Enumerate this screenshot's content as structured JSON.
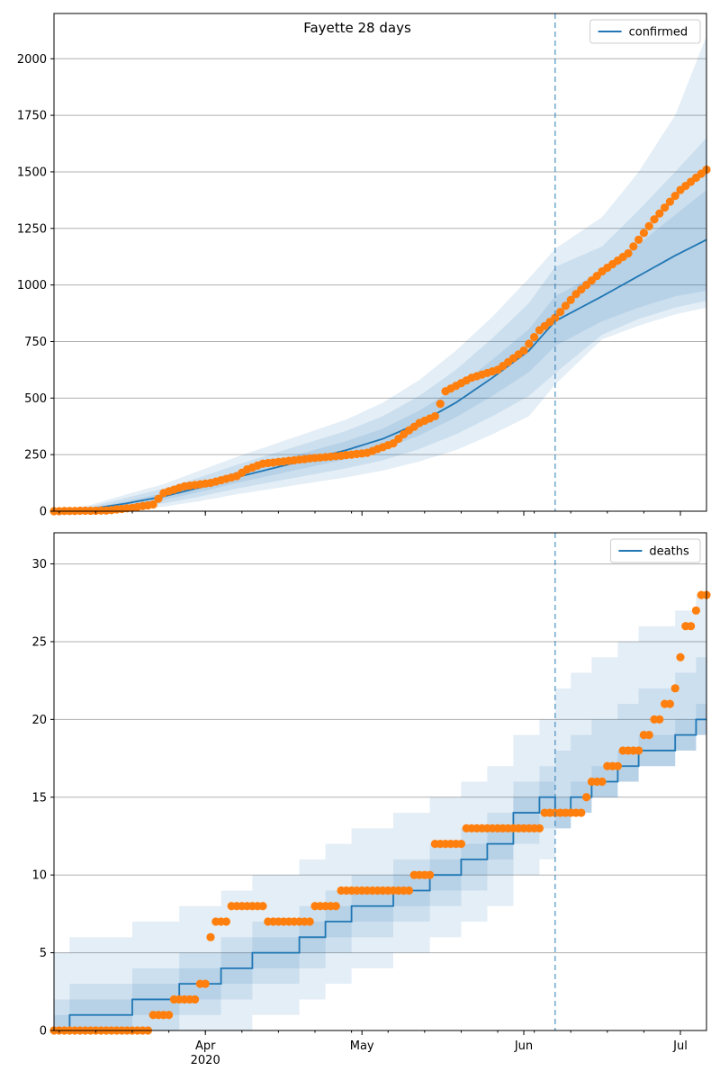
{
  "colors": {
    "model": "#1f77b4",
    "observed": "#ff7f0e",
    "band": "#1f77b4",
    "grid": "#b0b0b0",
    "forecast_line": "#1f77b4"
  },
  "chart_data": [
    {
      "type": "line",
      "title": "Fayette 28 days",
      "xlabel": "",
      "ylabel": "",
      "x_range": [
        "2020-03-03",
        "2020-07-06"
      ],
      "xlim": [
        0,
        125
      ],
      "ylim": [
        0,
        2200
      ],
      "yticks": [
        0,
        250,
        500,
        750,
        1000,
        1250,
        1500,
        1750,
        2000
      ],
      "grid": "horizontal",
      "legend_position": "top-right",
      "legend": [
        "confirmed"
      ],
      "forecast_start_day": 96,
      "model_series": {
        "name": "confirmed",
        "knots_day": [
          0,
          7,
          14,
          21,
          28,
          35,
          42,
          49,
          56,
          63,
          70,
          77,
          84,
          91,
          96,
          105,
          112,
          119,
          125
        ],
        "median": [
          0,
          10,
          35,
          65,
          105,
          150,
          190,
          230,
          270,
          320,
          390,
          480,
          590,
          710,
          840,
          950,
          1040,
          1130,
          1200
        ],
        "band_50": [
          [
            0,
            0
          ],
          [
            6,
            14
          ],
          [
            25,
            45
          ],
          [
            50,
            80
          ],
          [
            85,
            125
          ],
          [
            125,
            175
          ],
          [
            160,
            220
          ],
          [
            195,
            265
          ],
          [
            230,
            310
          ],
          [
            275,
            365
          ],
          [
            335,
            445
          ],
          [
            415,
            545
          ],
          [
            510,
            670
          ],
          [
            615,
            805
          ],
          [
            730,
            950
          ],
          [
            840,
            1060
          ],
          [
            900,
            1180
          ],
          [
            950,
            1310
          ],
          [
            975,
            1420
          ]
        ],
        "band_80": [
          [
            0,
            0
          ],
          [
            3,
            20
          ],
          [
            15,
            60
          ],
          [
            35,
            100
          ],
          [
            65,
            150
          ],
          [
            100,
            205
          ],
          [
            130,
            255
          ],
          [
            160,
            305
          ],
          [
            190,
            355
          ],
          [
            225,
            420
          ],
          [
            275,
            510
          ],
          [
            340,
            625
          ],
          [
            420,
            765
          ],
          [
            510,
            920
          ],
          [
            610,
            1080
          ],
          [
            780,
            1170
          ],
          [
            850,
            1330
          ],
          [
            900,
            1500
          ],
          [
            930,
            1650
          ]
        ],
        "band_95": [
          [
            0,
            0
          ],
          [
            0,
            28
          ],
          [
            5,
            75
          ],
          [
            20,
            120
          ],
          [
            45,
            180
          ],
          [
            75,
            240
          ],
          [
            100,
            295
          ],
          [
            125,
            350
          ],
          [
            150,
            405
          ],
          [
            180,
            480
          ],
          [
            220,
            580
          ],
          [
            270,
            710
          ],
          [
            340,
            860
          ],
          [
            420,
            1030
          ],
          [
            560,
            1160
          ],
          [
            760,
            1300
          ],
          [
            820,
            1500
          ],
          [
            870,
            1750
          ],
          [
            900,
            2100
          ]
        ]
      },
      "observed": {
        "knots_day": [
          0,
          10,
          15,
          19,
          21,
          25,
          30,
          35,
          37,
          40,
          44,
          50,
          55,
          60,
          65,
          67,
          70,
          73,
          75,
          80,
          85,
          90,
          93,
          96,
          100,
          105,
          110,
          115,
          120,
          125
        ],
        "values": [
          0,
          3,
          15,
          30,
          80,
          110,
          125,
          155,
          185,
          210,
          220,
          235,
          245,
          258,
          300,
          340,
          390,
          420,
          530,
          590,
          625,
          710,
          800,
          855,
          960,
          1060,
          1140,
          1290,
          1420,
          1510
        ]
      }
    },
    {
      "type": "line",
      "title": "",
      "xlabel": "",
      "ylabel": "",
      "xlim": [
        0,
        125
      ],
      "ylim": [
        0,
        32
      ],
      "yticks": [
        0,
        5,
        10,
        15,
        20,
        25,
        30
      ],
      "xticks": [
        {
          "day": 29,
          "label": "Apr",
          "sublabel": "2020"
        },
        {
          "day": 59,
          "label": "May",
          "sublabel": ""
        },
        {
          "day": 90,
          "label": "Jun",
          "sublabel": ""
        },
        {
          "day": 120,
          "label": "Jul",
          "sublabel": ""
        }
      ],
      "grid": "horizontal",
      "legend_position": "top-right",
      "legend": [
        "deaths"
      ],
      "forecast_start_day": 96,
      "model_series": {
        "name": "deaths",
        "steps": [
          [
            0,
            0
          ],
          [
            3,
            1
          ],
          [
            15,
            2
          ],
          [
            24,
            3
          ],
          [
            32,
            4
          ],
          [
            38,
            5
          ],
          [
            47,
            6
          ],
          [
            52,
            7
          ],
          [
            57,
            8
          ],
          [
            65,
            9
          ],
          [
            72,
            10
          ],
          [
            78,
            11
          ],
          [
            83,
            12
          ],
          [
            88,
            14
          ],
          [
            93,
            15
          ],
          [
            96,
            14
          ],
          [
            99,
            15
          ],
          [
            103,
            16
          ],
          [
            108,
            17
          ],
          [
            112,
            18
          ],
          [
            119,
            19
          ],
          [
            123,
            20
          ],
          [
            125,
            20
          ]
        ],
        "offsets_50": [
          -1,
          1
        ],
        "offsets_80": [
          -2,
          2
        ],
        "offsets_95": [
          -4,
          5
        ],
        "offsets_80_forecast": [
          -1,
          4
        ],
        "offsets_95_forecast": [
          -1,
          8
        ]
      },
      "observed": {
        "steps": [
          [
            0,
            0
          ],
          [
            19,
            1
          ],
          [
            23,
            2
          ],
          [
            28,
            3
          ],
          [
            30,
            6
          ],
          [
            31,
            7
          ],
          [
            34,
            8
          ],
          [
            41,
            7
          ],
          [
            50,
            8
          ],
          [
            55,
            9
          ],
          [
            69,
            10
          ],
          [
            73,
            12
          ],
          [
            79,
            13
          ],
          [
            94,
            14
          ],
          [
            102,
            15
          ],
          [
            103,
            16
          ],
          [
            106,
            17
          ],
          [
            109,
            18
          ],
          [
            113,
            19
          ],
          [
            115,
            20
          ],
          [
            117,
            21
          ],
          [
            119,
            22
          ],
          [
            120,
            24
          ],
          [
            121,
            26
          ],
          [
            123,
            27
          ],
          [
            124,
            28
          ],
          [
            126,
            28
          ]
        ]
      }
    }
  ]
}
